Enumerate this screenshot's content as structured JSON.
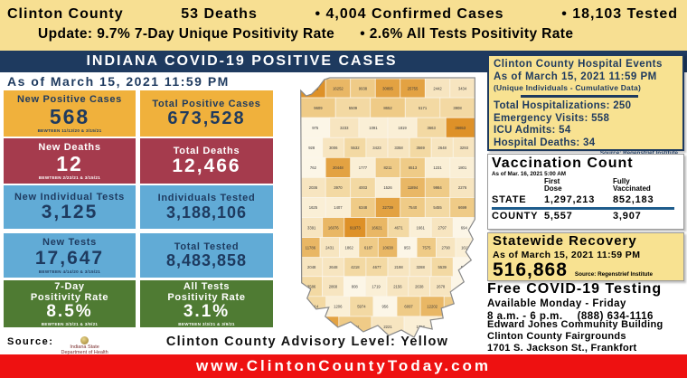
{
  "colors": {
    "banner_bg": "#F7DF92",
    "navy": "#1E3A5F",
    "gold_box": "#F0B13C",
    "red_box": "#A53B4D",
    "blue_box": "#61ABD6",
    "green_box": "#4F7B33",
    "panel_yellow": "#F8E291",
    "footer_red": "#EE1111",
    "vax_underline": "#1E5C8C",
    "map_outline": "#8A8A8A"
  },
  "top_banner": {
    "line1": [
      "Clinton County",
      "53 Deaths",
      "• 4,004 Confirmed Cases",
      "• 18,103 Tested"
    ],
    "line2": [
      "Update: 9.7% 7-Day Unique Positivity Rate",
      "• 2.6% All Tests Positivity Rate"
    ]
  },
  "header": {
    "title": "INDIANA COVID-19 POSITIVE CASES",
    "date_line": "As of March 15, 2021 11:59 PM"
  },
  "stats": {
    "columns": [
      {
        "boxes": [
          {
            "label": "New Positive Cases",
            "value": "568",
            "note": "BEWTEEN 11/13/20 & 3/15/21",
            "style": "gold"
          },
          {
            "label": "New Deaths",
            "value": "12",
            "note": "BEWTEEN 2/23/21 & 3/15/21",
            "style": "red"
          },
          {
            "label": "New Individual Tests",
            "value": "3,125",
            "note": "",
            "style": "blue"
          },
          {
            "label": "New Tests",
            "value": "17,647",
            "note": "BEWTEEN 4/14/20 & 3/15/21",
            "style": "blue"
          },
          {
            "label": "7-Day\nPositivity Rate",
            "value": "8.5%",
            "note": "BEWTEEN 3/3/21 & 3/9/21",
            "style": "green"
          }
        ]
      },
      {
        "boxes": [
          {
            "label": "Total Positive Cases",
            "value": "673,528",
            "note": "",
            "style": "gold"
          },
          {
            "label": "Total Deaths",
            "value": "12,466",
            "note": "",
            "style": "red"
          },
          {
            "label": "Individuals Tested",
            "value": "3,188,106",
            "note": "",
            "style": "blue"
          },
          {
            "label": "Total Tested",
            "value": "8,483,858",
            "note": "",
            "style": "blue"
          },
          {
            "label": "All Tests\nPositivity Rate",
            "value": "3.1%",
            "note": "BEWTEEN 3/3/21 & 3/9/21",
            "style": "green"
          }
        ]
      }
    ]
  },
  "map": {
    "palette": [
      {
        "max": 1000,
        "color": "#FCF6E7"
      },
      {
        "max": 2000,
        "color": "#FAEFD6"
      },
      {
        "max": 3500,
        "color": "#F7E5C0"
      },
      {
        "max": 6000,
        "color": "#F3D9A3"
      },
      {
        "max": 10000,
        "color": "#EFCB87"
      },
      {
        "max": 17000,
        "color": "#E9B765"
      },
      {
        "max": 33000,
        "color": "#E3A242"
      },
      {
        "max": 1000000,
        "color": "#DE9128"
      }
    ]
  },
  "hospital": {
    "title": "Clinton County Hospital Events",
    "subtitle": "As of March 15, 2021 11:59 PM",
    "note": "(Unique Individuals - Cumulative Data)",
    "lines": [
      "Total Hospitalizations: 250",
      "Emergency Visits: 558",
      "ICU Admits: 54",
      "Hospital Deaths: 34"
    ],
    "source": "Source: Regenstrief Institute"
  },
  "vaccination": {
    "title": "Vaccination Count",
    "as_of": "As of Mar. 16, 2021 5:00 AM",
    "col1": "First\nDose",
    "col2": "Fully\nVaccinated",
    "rows": [
      {
        "name": "STATE",
        "first": "1,297,213",
        "full": "852,183"
      },
      {
        "name": "COUNTY",
        "first": "5,557",
        "full": "3,907"
      }
    ]
  },
  "recovery": {
    "title": "Statewide Recovery",
    "as_of": "As of March 15, 2021 11:59 PM",
    "value": "516,868",
    "source": "Source: Regenstrief Institute"
  },
  "testing": {
    "title": "Free COVID-19 Testing",
    "line1": "Available Monday - Friday",
    "line2": "8 a.m. - 6 p.m.",
    "phone": "(888) 634-1116",
    "location": [
      "Edward Jones Community Building",
      "Clinton County Fairgrounds",
      "1701 S. Jackson St., Frankfort"
    ]
  },
  "advisory": {
    "source_label": "Source:",
    "logo_lines": [
      "Indiana State",
      "Department of Health"
    ],
    "text": "Clinton County Advisory Level: Yellow"
  },
  "footer": {
    "url": "www.ClintonCountyToday.com"
  },
  "chart_data": {
    "type": "heatmap",
    "title": "INDIANA COVID-19 POSITIVE CASES",
    "as_of": "As of March 15, 2021 11:59 PM",
    "unit": "cumulative positive cases per Indiana county (choropleth, darker = more cases)",
    "county_values_rows_top_to_bottom": [
      [
        49115,
        16252,
        9938,
        30895,
        25755,
        2442,
        3434
      ],
      [
        9609,
        5509,
        8652,
        5171,
        3908
      ],
      [
        975,
        3233,
        1091,
        1819,
        3663,
        36653
      ],
      [
        928,
        3006,
        5532,
        3423,
        3358,
        3569,
        2648,
        3293
      ],
      [
        762,
        20448,
        1777,
        8211,
        6513,
        1231,
        1801
      ],
      [
        2036,
        3970,
        4003,
        1526,
        11894,
        9984,
        2276
      ],
      [
        1625,
        1407,
        6348,
        32739,
        7540,
        5455,
        6699
      ],
      [
        3391,
        16076,
        91973,
        16621,
        4671,
        1661,
        2797,
        694
      ],
      [
        11786,
        2431,
        1862,
        6187,
        10638,
        953,
        7575,
        2790,
        1611
      ],
      [
        2048,
        2648,
        4218,
        4677,
        2198,
        3288,
        5539,
        543
      ],
      [
        3586,
        2868,
        808,
        1719,
        2156,
        2638,
        2678,
        756
      ],
      [
        4114,
        1206,
        5974,
        956,
        6097,
        12202,
        7301
      ],
      [
        21485,
        7501,
        2221,
        1753
      ]
    ],
    "summary": {
      "new_positive_cases": 568,
      "total_positive_cases": 673528,
      "new_deaths": 12,
      "total_deaths": 12466,
      "new_individual_tests": 3125,
      "individuals_tested": 3188106,
      "new_tests": 17647,
      "total_tested": 8483858,
      "seven_day_positivity_rate": "8.5%",
      "all_tests_positivity_rate": "3.1%",
      "statewide_recovery": 516868,
      "county_deaths": 53,
      "county_confirmed_cases": 4004,
      "county_tested": 18103,
      "county_7day_unique_positivity": "9.7%",
      "county_all_tests_positivity": "2.6%"
    }
  }
}
